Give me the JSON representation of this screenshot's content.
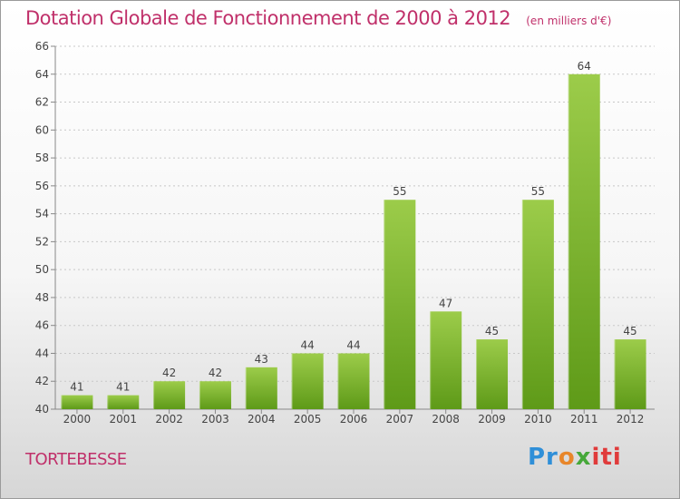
{
  "title": "Dotation Globale de Fonctionnement de 2000 à 2012",
  "unit": "(en milliers d'€)",
  "commune": "TORTEBESSE",
  "logo": {
    "l1": "Pr",
    "l2": "o",
    "l3": "x",
    "l4": "iti"
  },
  "colors": {
    "title": "#c0306a",
    "bar_top": "#9ccc4a",
    "bar_bottom": "#5e9a18"
  },
  "chart_data": {
    "type": "bar",
    "title": "Dotation Globale de Fonctionnement de 2000 à 2012",
    "subtitle": "(en milliers d'€)",
    "categories": [
      "2000",
      "2001",
      "2002",
      "2003",
      "2004",
      "2005",
      "2006",
      "2007",
      "2008",
      "2009",
      "2010",
      "2011",
      "2012"
    ],
    "values": [
      41,
      41,
      42,
      42,
      43,
      44,
      44,
      55,
      47,
      45,
      55,
      64,
      45
    ],
    "ylim": [
      40,
      66
    ],
    "yticks": [
      40,
      42,
      44,
      46,
      48,
      50,
      52,
      54,
      56,
      58,
      60,
      62,
      64,
      66
    ],
    "grid": true,
    "data_labels": true
  }
}
